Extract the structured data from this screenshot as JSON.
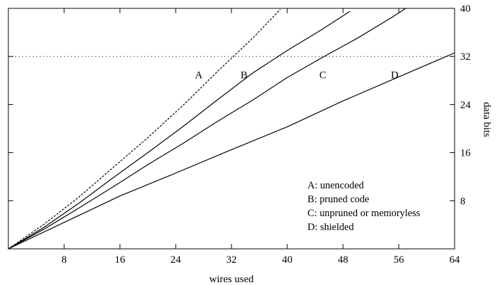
{
  "chart_data": {
    "type": "line",
    "title": "",
    "xlabel": "wires used",
    "ylabel": "data bits",
    "xlim": [
      0,
      64
    ],
    "ylim": [
      0,
      40
    ],
    "x_ticks": [
      8,
      16,
      24,
      32,
      40,
      48,
      56,
      64
    ],
    "y_ticks": [
      8,
      16,
      24,
      32,
      40
    ],
    "y_axis_side": "right",
    "grid": false,
    "reference_line": {
      "y": 32,
      "style": "dotted"
    },
    "series": [
      {
        "label": "A",
        "dash": "dashed",
        "points": [
          [
            0,
            0
          ],
          [
            5,
            4
          ],
          [
            10,
            8.5
          ],
          [
            15,
            13.5
          ],
          [
            20,
            18.5
          ],
          [
            25,
            23.8
          ],
          [
            30,
            29.5
          ],
          [
            35,
            35
          ],
          [
            39,
            39.8
          ]
        ]
      },
      {
        "label": "B",
        "dash": "solid",
        "points": [
          [
            0,
            0
          ],
          [
            5,
            3.5
          ],
          [
            10,
            7.5
          ],
          [
            15,
            11.8
          ],
          [
            20,
            16
          ],
          [
            25,
            20.3
          ],
          [
            30,
            24.8
          ],
          [
            35,
            29.2
          ],
          [
            40,
            33
          ],
          [
            45,
            36.5
          ],
          [
            49,
            39.5
          ]
        ]
      },
      {
        "label": "C",
        "dash": "solid",
        "points": [
          [
            0,
            0
          ],
          [
            5,
            3.2
          ],
          [
            10,
            6.7
          ],
          [
            15,
            10.3
          ],
          [
            20,
            14
          ],
          [
            25,
            17.5
          ],
          [
            30,
            21.2
          ],
          [
            35,
            24.7
          ],
          [
            40,
            28.5
          ],
          [
            45,
            31.8
          ],
          [
            50,
            35
          ],
          [
            55,
            38.5
          ],
          [
            57,
            40
          ]
        ]
      },
      {
        "label": "D",
        "dash": "solid",
        "points": [
          [
            0,
            0
          ],
          [
            8,
            4.4
          ],
          [
            16,
            8.8
          ],
          [
            24,
            12.6
          ],
          [
            32,
            16.5
          ],
          [
            40,
            20.3
          ],
          [
            48,
            24.6
          ],
          [
            56,
            28.6
          ],
          [
            64,
            32.6
          ]
        ]
      }
    ],
    "curve_labels": [
      {
        "text": "A",
        "x": 27.3,
        "y": 28.4
      },
      {
        "text": "B",
        "x": 33.8,
        "y": 28.4
      },
      {
        "text": "C",
        "x": 45.1,
        "y": 28.4
      },
      {
        "text": "D",
        "x": 55.4,
        "y": 28.4
      }
    ],
    "legend": {
      "position": "bottom-right",
      "entries": [
        "A: unencoded",
        "B: pruned code",
        "C: unpruned or memoryless",
        "D: shielded"
      ]
    }
  }
}
